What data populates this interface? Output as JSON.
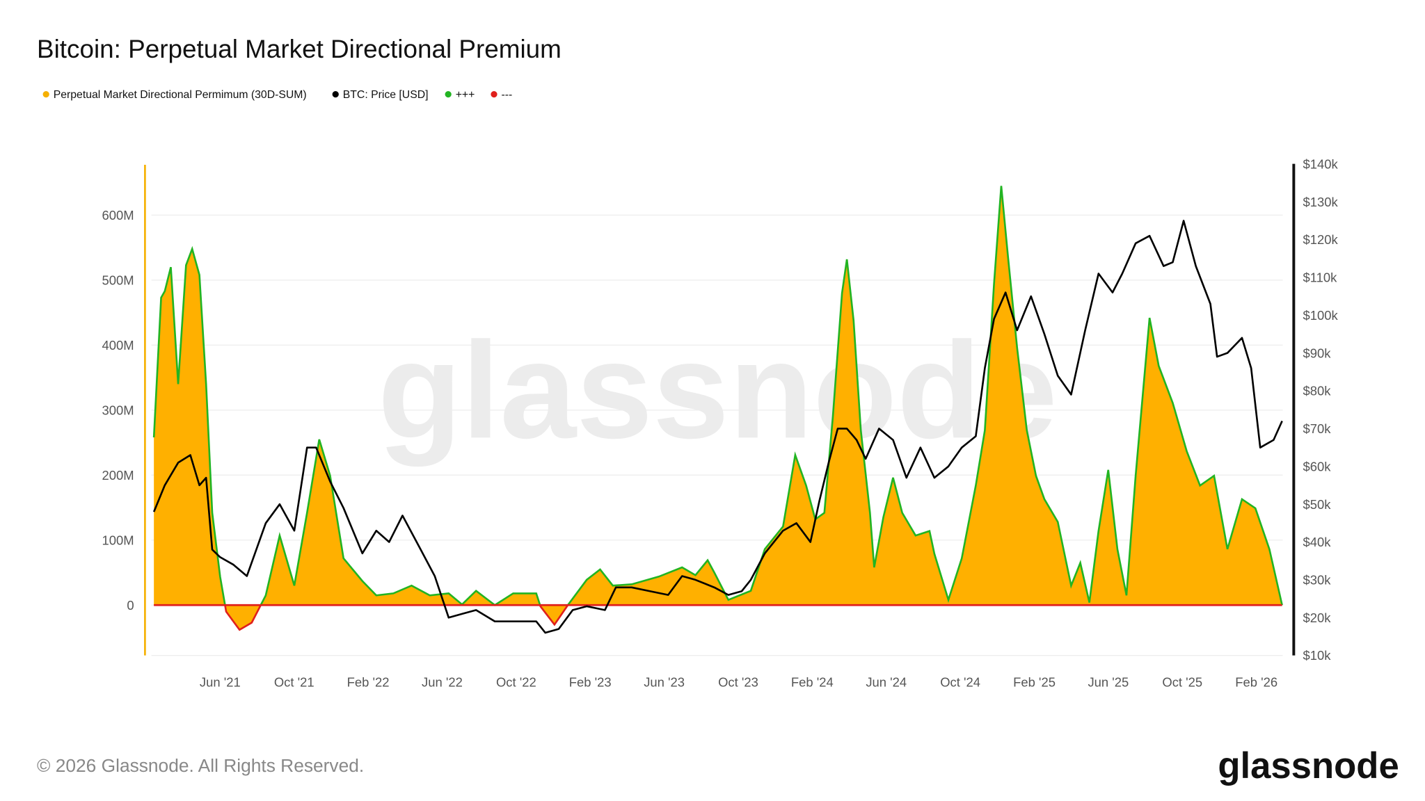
{
  "title": "Bitcoin: Perpetual Market Directional Premium",
  "legend": [
    {
      "label": "Perpetual Market Directional Permimum (30D-SUM)",
      "color": "#F5B000"
    },
    {
      "label": "BTC: Price [USD]",
      "color": "#000000"
    },
    {
      "label": "+++",
      "color": "#22B422"
    },
    {
      "label": "---",
      "color": "#E0201C"
    }
  ],
  "footer": {
    "copyright": "© 2026 Glassnode. All Rights Reserved.",
    "logo": "glassnode",
    "watermark": "glassnode"
  },
  "chart_data": {
    "type": "area",
    "title": "Bitcoin: Perpetual Market Directional Premium",
    "x_ticks": [
      "Jun '21",
      "Oct '21",
      "Feb '22",
      "Jun '22",
      "Oct '22",
      "Feb '23",
      "Jun '23",
      "Oct '23",
      "Feb '24",
      "Jun '24",
      "Oct '24",
      "Feb '25",
      "Jun '25",
      "Oct '25",
      "Feb '26"
    ],
    "y_left": {
      "ticks": [
        "0",
        "100M",
        "200M",
        "300M",
        "400M",
        "500M",
        "600M"
      ],
      "range_millions": [
        -77,
        677
      ]
    },
    "y_right": {
      "ticks": [
        "$10k",
        "$20k",
        "$30k",
        "$40k",
        "$50k",
        "$60k",
        "$70k",
        "$80k",
        "$90k",
        "$100k",
        "$110k",
        "$120k",
        "$130k",
        "$140k"
      ],
      "range_usd_k": [
        10,
        140
      ]
    },
    "grid": true,
    "legend_placement": "top-left",
    "colors": {
      "area": "#FFB000",
      "positive_line": "#22B422",
      "negative_line": "#E0201C",
      "price": "#000000"
    },
    "series": [
      {
        "name": "Perpetual Market Directional Permimum (30D-SUM)",
        "unit": "USD millions",
        "axis": "left",
        "points": [
          [
            "2021-02-12",
            258
          ],
          [
            "2021-02-24",
            473
          ],
          [
            "2021-03-02",
            483
          ],
          [
            "2021-03-12",
            520
          ],
          [
            "2021-03-24",
            340
          ],
          [
            "2021-04-06",
            523
          ],
          [
            "2021-04-16",
            548
          ],
          [
            "2021-04-28",
            508
          ],
          [
            "2021-05-09",
            340
          ],
          [
            "2021-05-19",
            142
          ],
          [
            "2021-06-01",
            44
          ],
          [
            "2021-06-11",
            -10
          ],
          [
            "2021-07-03",
            -38
          ],
          [
            "2021-07-23",
            -27
          ],
          [
            "2021-08-15",
            15
          ],
          [
            "2021-09-07",
            107
          ],
          [
            "2021-10-01",
            30
          ],
          [
            "2021-10-22",
            142
          ],
          [
            "2021-11-11",
            255
          ],
          [
            "2021-11-29",
            199
          ],
          [
            "2021-12-21",
            72
          ],
          [
            "2022-01-21",
            37
          ],
          [
            "2022-02-13",
            15
          ],
          [
            "2022-03-13",
            18
          ],
          [
            "2022-04-12",
            30
          ],
          [
            "2022-05-12",
            15
          ],
          [
            "2022-06-12",
            18
          ],
          [
            "2022-07-04",
            1
          ],
          [
            "2022-07-27",
            22
          ],
          [
            "2022-08-27",
            0
          ],
          [
            "2022-09-26",
            18
          ],
          [
            "2022-11-03",
            18
          ],
          [
            "2022-11-10",
            -2
          ],
          [
            "2022-12-03",
            -30
          ],
          [
            "2022-12-25",
            0
          ],
          [
            "2023-01-25",
            39
          ],
          [
            "2023-02-16",
            55
          ],
          [
            "2023-03-09",
            30
          ],
          [
            "2023-04-09",
            32
          ],
          [
            "2023-05-24",
            44
          ],
          [
            "2023-07-01",
            58
          ],
          [
            "2023-07-23",
            46
          ],
          [
            "2023-08-12",
            69
          ],
          [
            "2023-08-23",
            50
          ],
          [
            "2023-09-15",
            8
          ],
          [
            "2023-10-22",
            22
          ],
          [
            "2023-11-14",
            86
          ],
          [
            "2023-12-14",
            121
          ],
          [
            "2024-01-03",
            231
          ],
          [
            "2024-01-21",
            184
          ],
          [
            "2024-02-05",
            132
          ],
          [
            "2024-02-20",
            142
          ],
          [
            "2024-03-05",
            290
          ],
          [
            "2024-03-20",
            480
          ],
          [
            "2024-03-28",
            532
          ],
          [
            "2024-04-08",
            438
          ],
          [
            "2024-04-20",
            269
          ],
          [
            "2024-05-05",
            142
          ],
          [
            "2024-05-12",
            58
          ],
          [
            "2024-05-27",
            135
          ],
          [
            "2024-06-12",
            196
          ],
          [
            "2024-06-27",
            142
          ],
          [
            "2024-07-19",
            107
          ],
          [
            "2024-08-11",
            114
          ],
          [
            "2024-08-19",
            79
          ],
          [
            "2024-09-11",
            8
          ],
          [
            "2024-10-03",
            72
          ],
          [
            "2024-10-26",
            184
          ],
          [
            "2024-11-10",
            269
          ],
          [
            "2024-11-25",
            494
          ],
          [
            "2024-12-07",
            645
          ],
          [
            "2024-12-18",
            537
          ],
          [
            "2025-01-02",
            396
          ],
          [
            "2025-01-18",
            269
          ],
          [
            "2025-02-02",
            199
          ],
          [
            "2025-02-16",
            163
          ],
          [
            "2025-03-10",
            128
          ],
          [
            "2025-04-01",
            30
          ],
          [
            "2025-04-16",
            65
          ],
          [
            "2025-05-01",
            4
          ],
          [
            "2025-05-16",
            114
          ],
          [
            "2025-06-01",
            208
          ],
          [
            "2025-06-16",
            86
          ],
          [
            "2025-07-01",
            15
          ],
          [
            "2025-07-16",
            199
          ],
          [
            "2025-08-08",
            442
          ],
          [
            "2025-08-23",
            368
          ],
          [
            "2025-09-15",
            311
          ],
          [
            "2025-10-08",
            237
          ],
          [
            "2025-10-30",
            184
          ],
          [
            "2025-11-22",
            199
          ],
          [
            "2025-12-14",
            86
          ],
          [
            "2026-01-07",
            163
          ],
          [
            "2026-01-29",
            149
          ],
          [
            "2026-02-21",
            86
          ],
          [
            "2026-03-14",
            0
          ]
        ]
      },
      {
        "name": "BTC: Price [USD]",
        "unit": "USD thousands",
        "axis": "right",
        "points": [
          [
            "2021-02-12",
            48
          ],
          [
            "2021-03-02",
            55
          ],
          [
            "2021-03-24",
            61
          ],
          [
            "2021-04-13",
            63
          ],
          [
            "2021-04-28",
            55
          ],
          [
            "2021-05-09",
            57
          ],
          [
            "2021-05-19",
            38
          ],
          [
            "2021-06-01",
            36
          ],
          [
            "2021-06-23",
            34
          ],
          [
            "2021-07-15",
            31
          ],
          [
            "2021-08-15",
            45
          ],
          [
            "2021-09-07",
            50
          ],
          [
            "2021-10-01",
            43
          ],
          [
            "2021-10-22",
            65
          ],
          [
            "2021-11-06",
            65
          ],
          [
            "2021-11-29",
            56
          ],
          [
            "2021-12-21",
            49
          ],
          [
            "2022-01-21",
            37
          ],
          [
            "2022-02-13",
            43
          ],
          [
            "2022-03-06",
            40
          ],
          [
            "2022-03-28",
            47
          ],
          [
            "2022-04-27",
            38
          ],
          [
            "2022-05-20",
            31
          ],
          [
            "2022-06-12",
            20
          ],
          [
            "2022-07-04",
            21
          ],
          [
            "2022-07-27",
            22
          ],
          [
            "2022-08-27",
            19
          ],
          [
            "2022-09-26",
            19
          ],
          [
            "2022-11-03",
            19
          ],
          [
            "2022-11-18",
            16
          ],
          [
            "2022-12-10",
            17
          ],
          [
            "2023-01-02",
            22
          ],
          [
            "2023-01-25",
            23
          ],
          [
            "2023-02-24",
            22
          ],
          [
            "2023-03-14",
            28
          ],
          [
            "2023-04-09",
            28
          ],
          [
            "2023-05-09",
            27
          ],
          [
            "2023-06-08",
            26
          ],
          [
            "2023-07-01",
            31
          ],
          [
            "2023-07-23",
            30
          ],
          [
            "2023-08-23",
            28
          ],
          [
            "2023-09-15",
            26
          ],
          [
            "2023-10-07",
            27
          ],
          [
            "2023-10-22",
            30
          ],
          [
            "2023-11-14",
            37
          ],
          [
            "2023-12-14",
            43
          ],
          [
            "2024-01-05",
            45
          ],
          [
            "2024-01-28",
            40
          ],
          [
            "2024-02-12",
            51
          ],
          [
            "2024-02-27",
            61
          ],
          [
            "2024-03-13",
            70
          ],
          [
            "2024-03-28",
            70
          ],
          [
            "2024-04-13",
            67
          ],
          [
            "2024-04-28",
            62
          ],
          [
            "2024-05-20",
            70
          ],
          [
            "2024-06-12",
            67
          ],
          [
            "2024-07-04",
            57
          ],
          [
            "2024-07-27",
            65
          ],
          [
            "2024-08-19",
            57
          ],
          [
            "2024-09-11",
            60
          ],
          [
            "2024-10-03",
            65
          ],
          [
            "2024-10-26",
            68
          ],
          [
            "2024-11-10",
            86
          ],
          [
            "2024-11-25",
            99
          ],
          [
            "2024-12-14",
            106
          ],
          [
            "2025-01-02",
            96
          ],
          [
            "2025-01-25",
            105
          ],
          [
            "2025-02-16",
            95
          ],
          [
            "2025-03-10",
            84
          ],
          [
            "2025-04-01",
            79
          ],
          [
            "2025-04-24",
            96
          ],
          [
            "2025-05-16",
            111
          ],
          [
            "2025-06-08",
            106
          ],
          [
            "2025-06-24",
            111
          ],
          [
            "2025-07-16",
            119
          ],
          [
            "2025-08-08",
            121
          ],
          [
            "2025-08-31",
            113
          ],
          [
            "2025-09-15",
            114
          ],
          [
            "2025-10-03",
            125
          ],
          [
            "2025-10-23",
            113
          ],
          [
            "2025-11-16",
            103
          ],
          [
            "2025-11-27",
            89
          ],
          [
            "2025-12-14",
            90
          ],
          [
            "2026-01-07",
            94
          ],
          [
            "2026-01-22",
            86
          ],
          [
            "2026-02-06",
            65
          ],
          [
            "2026-02-28",
            67
          ],
          [
            "2026-03-14",
            72
          ]
        ]
      }
    ]
  }
}
